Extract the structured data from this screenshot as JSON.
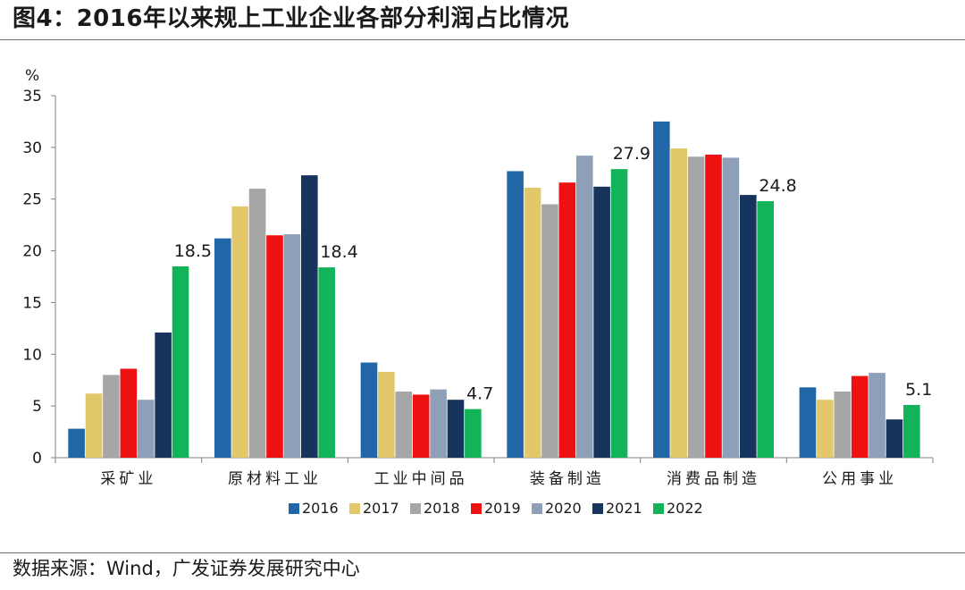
{
  "title": "图4：2016年以来规上工业企业各部分利润占比情况",
  "source": "数据来源：Wind，广发证券发展研究中心",
  "chart_data": {
    "type": "bar",
    "ylabel": "%",
    "ylim": [
      0,
      35
    ],
    "yticks": [
      0,
      5,
      10,
      15,
      20,
      25,
      30,
      35
    ],
    "categories": [
      "采矿业",
      "原材料工业",
      "工业中间品",
      "装备制造",
      "消费品制造",
      "公用事业"
    ],
    "series": [
      {
        "name": "2016",
        "color": "#2166A6",
        "values": [
          2.8,
          21.2,
          9.2,
          27.7,
          32.5,
          6.8
        ]
      },
      {
        "name": "2017",
        "color": "#E3C86B",
        "values": [
          6.2,
          24.3,
          8.3,
          26.1,
          29.9,
          5.6
        ]
      },
      {
        "name": "2018",
        "color": "#A6A6A6",
        "values": [
          8.0,
          26.0,
          6.4,
          24.5,
          29.1,
          6.4
        ]
      },
      {
        "name": "2019",
        "color": "#EE1111",
        "values": [
          8.6,
          21.5,
          6.1,
          26.6,
          29.3,
          7.9
        ]
      },
      {
        "name": "2020",
        "color": "#8EA0B8",
        "values": [
          5.6,
          21.6,
          6.6,
          29.2,
          29.0,
          8.2
        ]
      },
      {
        "name": "2021",
        "color": "#16345C",
        "values": [
          12.1,
          27.3,
          5.6,
          26.2,
          25.4,
          3.7
        ]
      },
      {
        "name": "2022",
        "color": "#13B35A",
        "values": [
          18.5,
          18.4,
          4.7,
          27.9,
          24.8,
          5.1
        ]
      }
    ],
    "data_labels": [
      {
        "category": "采矿业",
        "series": "2022",
        "text": "18.5"
      },
      {
        "category": "原材料工业",
        "series": "2022",
        "text": "18.4"
      },
      {
        "category": "工业中间品",
        "series": "2022",
        "text": "4.7"
      },
      {
        "category": "装备制造",
        "series": "2022",
        "text": "27.9"
      },
      {
        "category": "消费品制造",
        "series": "2022",
        "text": "24.8"
      },
      {
        "category": "公用事业",
        "series": "2022",
        "text": "5.1"
      }
    ],
    "legend_position": "bottom"
  }
}
